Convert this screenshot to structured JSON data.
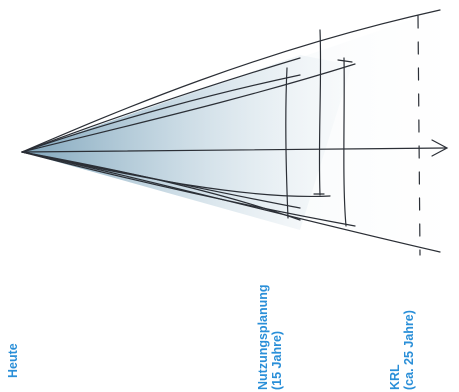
{
  "diagram": {
    "labels": {
      "today": "Heute",
      "planning_line1": "Nutzungsplanung",
      "planning_line2": "(15 Jahre)",
      "krl_line1": "KRL",
      "krl_line2": "(ca. 25 Jahre)"
    },
    "colors": {
      "label": "#2a8fd8",
      "ink": "#2b2f36",
      "cone_fill": "#8fb3c8"
    }
  }
}
